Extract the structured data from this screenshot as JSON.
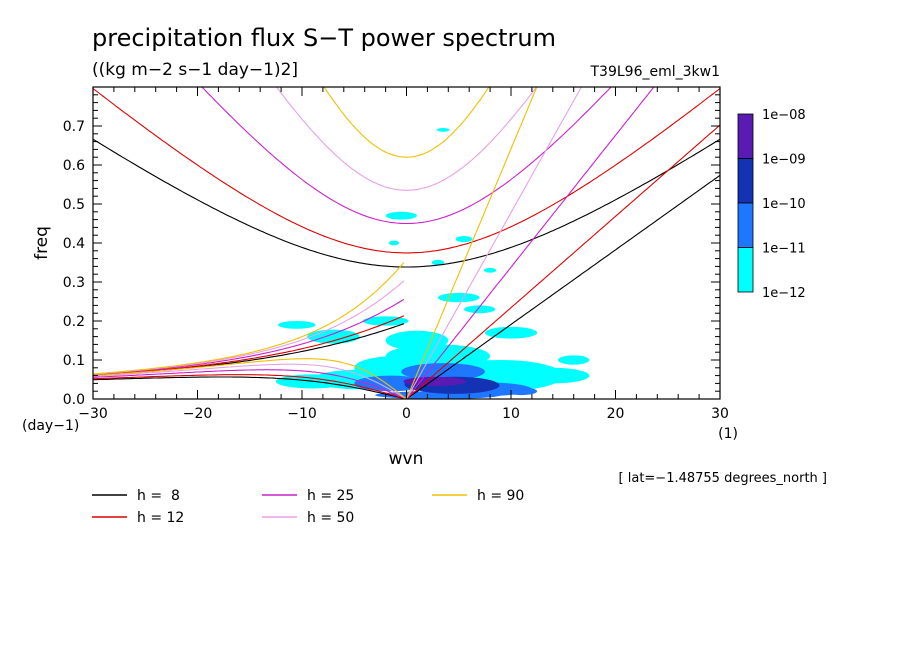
{
  "chart_data": {
    "type": "heatmap",
    "title": "precipitation flux S−T power spectrum",
    "subtitle": "((kg m−2 s−1 day−1)2]",
    "run_label": "T39L96_eml_3kw1",
    "xlabel": "wvn",
    "ylabel": "freq",
    "x_units": "(1)",
    "y_units": "(day−1)",
    "xlim": [
      -30,
      30
    ],
    "ylim": [
      0,
      0.8
    ],
    "x_ticks": [
      -30,
      -20,
      -10,
      0,
      10,
      20,
      30
    ],
    "x_tick_labels": [
      "−30",
      "−20",
      "−10",
      "0",
      "10",
      "20",
      "30"
    ],
    "y_ticks": [
      0.0,
      0.1,
      0.2,
      0.3,
      0.4,
      0.5,
      0.6,
      0.7
    ],
    "y_tick_labels": [
      "0.0",
      "0.1",
      "0.2",
      "0.3",
      "0.4",
      "0.5",
      "0.6",
      "0.7"
    ],
    "footnote": "[ lat=−1.48755 degrees_north ]",
    "colorbar": {
      "labels": [
        "1e−08",
        "1e−09",
        "1e−10",
        "1e−11",
        "1e−12"
      ],
      "colors": [
        "#5a1ab4",
        "#1432b4",
        "#1e78ff",
        "#00ffff"
      ]
    },
    "dispersion_curves": [
      {
        "label": "h =  8",
        "h": 8,
        "color": "#000000"
      },
      {
        "label": "h = 12",
        "h": 12,
        "color": "#e00000"
      },
      {
        "label": "h = 25",
        "h": 25,
        "color": "#cc22cc"
      },
      {
        "label": "h = 50",
        "h": 50,
        "color": "#e8a0e8"
      },
      {
        "label": "h = 90",
        "h": 90,
        "color": "#f0c000"
      }
    ],
    "spectral_blobs": [
      {
        "wvn": 2.7,
        "freq": 0.045,
        "level": 4,
        "rx": 3.0,
        "ry": 0.012
      },
      {
        "wvn": 4.6,
        "freq": 0.035,
        "level": 3,
        "rx": 4.3,
        "ry": 0.022
      },
      {
        "wvn": 1.4,
        "freq": 0.038,
        "level": 3,
        "rx": 1.6,
        "ry": 0.016
      },
      {
        "wvn": 3.5,
        "freq": 0.07,
        "level": 2,
        "rx": 4.0,
        "ry": 0.022
      },
      {
        "wvn": 7.0,
        "freq": 0.025,
        "level": 2,
        "rx": 5.0,
        "ry": 0.018
      },
      {
        "wvn": -1.5,
        "freq": 0.04,
        "level": 2,
        "rx": 3.5,
        "ry": 0.02
      },
      {
        "wvn": 3.0,
        "freq": 0.01,
        "level": 2,
        "rx": 6.0,
        "ry": 0.01
      },
      {
        "wvn": -4.5,
        "freq": 0.05,
        "level": 1,
        "rx": 4.5,
        "ry": 0.025
      },
      {
        "wvn": -1.0,
        "freq": 0.08,
        "level": 1,
        "rx": 4.0,
        "ry": 0.03
      },
      {
        "wvn": 3.0,
        "freq": 0.11,
        "level": 1,
        "rx": 5.0,
        "ry": 0.03
      },
      {
        "wvn": 9.0,
        "freq": 0.06,
        "level": 1,
        "rx": 6.0,
        "ry": 0.04
      },
      {
        "wvn": 14.0,
        "freq": 0.06,
        "level": 1,
        "rx": 3.5,
        "ry": 0.02
      },
      {
        "wvn": -9.0,
        "freq": 0.045,
        "level": 1,
        "rx": 3.5,
        "ry": 0.018
      },
      {
        "wvn": 1.0,
        "freq": 0.15,
        "level": 1,
        "rx": 3.0,
        "ry": 0.025
      },
      {
        "wvn": -7.0,
        "freq": 0.16,
        "level": 1,
        "rx": 2.5,
        "ry": 0.018
      },
      {
        "wvn": 10.0,
        "freq": 0.17,
        "level": 1,
        "rx": 2.5,
        "ry": 0.015
      },
      {
        "wvn": -2.0,
        "freq": 0.2,
        "level": 1,
        "rx": 2.2,
        "ry": 0.012
      },
      {
        "wvn": 5.0,
        "freq": 0.26,
        "level": 1,
        "rx": 2.0,
        "ry": 0.012
      },
      {
        "wvn": 7.0,
        "freq": 0.23,
        "level": 1,
        "rx": 1.5,
        "ry": 0.01
      },
      {
        "wvn": -10.5,
        "freq": 0.19,
        "level": 1,
        "rx": 1.8,
        "ry": 0.01
      },
      {
        "wvn": 16.0,
        "freq": 0.1,
        "level": 1,
        "rx": 1.5,
        "ry": 0.012
      },
      {
        "wvn": -0.5,
        "freq": 0.47,
        "level": 1,
        "rx": 1.5,
        "ry": 0.01
      },
      {
        "wvn": 5.5,
        "freq": 0.41,
        "level": 1,
        "rx": 0.8,
        "ry": 0.008
      },
      {
        "wvn": 3.0,
        "freq": 0.35,
        "level": 1,
        "rx": 0.6,
        "ry": 0.007
      },
      {
        "wvn": 3.5,
        "freq": 0.69,
        "level": 1,
        "rx": 0.6,
        "ry": 0.005
      },
      {
        "wvn": -1.2,
        "freq": 0.4,
        "level": 1,
        "rx": 0.5,
        "ry": 0.006
      },
      {
        "wvn": 8.0,
        "freq": 0.33,
        "level": 1,
        "rx": 0.6,
        "ry": 0.006
      },
      {
        "wvn": 11.0,
        "freq": 0.02,
        "level": 2,
        "rx": 1.5,
        "ry": 0.01
      }
    ]
  }
}
